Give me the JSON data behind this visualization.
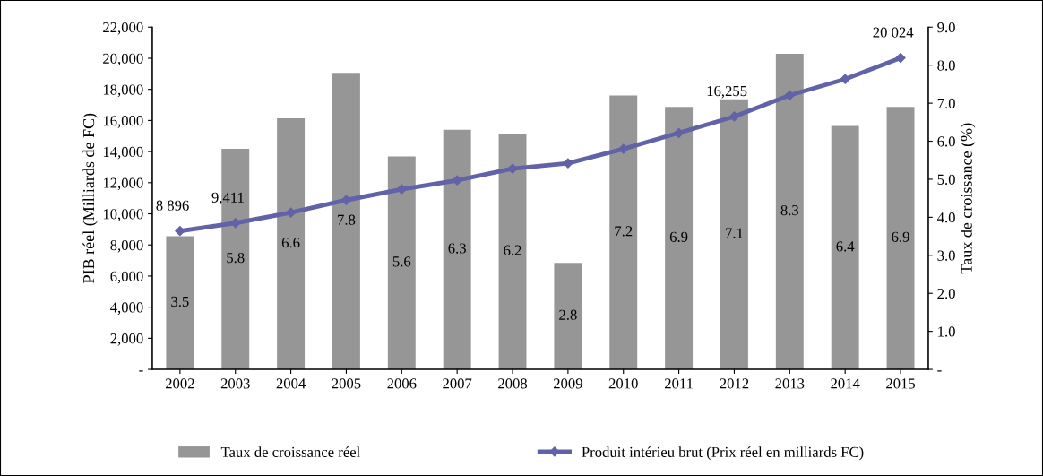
{
  "chart_data": {
    "type": "bar",
    "categories": [
      "2002",
      "2003",
      "2004",
      "2005",
      "2006",
      "2007",
      "2008",
      "2009",
      "2010",
      "2011",
      "2012",
      "2013",
      "2014",
      "2015"
    ],
    "series": [
      {
        "name": "Taux de croissance réel",
        "axis": "y2",
        "color": "#969696",
        "values": [
          3.5,
          5.8,
          6.6,
          7.8,
          5.6,
          6.3,
          6.2,
          2.8,
          7.2,
          6.9,
          7.1,
          8.3,
          6.4,
          6.9
        ],
        "value_labels": [
          "3.5",
          "5.8",
          "6.6",
          "7.8",
          "5.6",
          "6.3",
          "6.2",
          "2.8",
          "7.2",
          "6.9",
          "7.1",
          "8.3",
          "6.4",
          "6.9"
        ]
      },
      {
        "name": "Produit intérieu brut (Prix réel en milliards FC)",
        "type": "line",
        "axis": "y",
        "color": "#6262a8",
        "values": [
          8896,
          9411,
          10080,
          10880,
          11580,
          12150,
          12900,
          13250,
          14170,
          15200,
          16255,
          17620,
          18660,
          20024
        ],
        "value_labels": [
          "8 896",
          "9,411",
          null,
          null,
          null,
          null,
          null,
          null,
          null,
          null,
          "16,255",
          null,
          null,
          "20 024"
        ]
      }
    ],
    "ylabel": "PIB réel (Milliards de FC)",
    "y2label": "Taux de croissance (%)",
    "ylim": [
      0,
      22000
    ],
    "yticks": [
      {
        "value": 0,
        "label": "-"
      },
      {
        "value": 2000,
        "label": "2,000"
      },
      {
        "value": 4000,
        "label": "4,000"
      },
      {
        "value": 6000,
        "label": "6,000"
      },
      {
        "value": 8000,
        "label": "8,000"
      },
      {
        "value": 10000,
        "label": "10,000"
      },
      {
        "value": 12000,
        "label": "12,000"
      },
      {
        "value": 14000,
        "label": "14,000"
      },
      {
        "value": 16000,
        "label": "16,000"
      },
      {
        "value": 18000,
        "label": "18,000"
      },
      {
        "value": 20000,
        "label": "20,000"
      },
      {
        "value": 22000,
        "label": "22,000"
      }
    ],
    "y2lim": [
      0,
      9
    ],
    "y2ticks": [
      {
        "value": 0,
        "label": "-"
      },
      {
        "value": 1,
        "label": "1.0"
      },
      {
        "value": 2,
        "label": "2.0"
      },
      {
        "value": 3,
        "label": "3.0"
      },
      {
        "value": 4,
        "label": "4.0"
      },
      {
        "value": 5,
        "label": "5.0"
      },
      {
        "value": 6,
        "label": "6.0"
      },
      {
        "value": 7,
        "label": "7.0"
      },
      {
        "value": 8,
        "label": "8.0"
      },
      {
        "value": 9,
        "label": "9.0"
      }
    ],
    "legend": "bottom",
    "marker": "diamond",
    "grid": false
  }
}
